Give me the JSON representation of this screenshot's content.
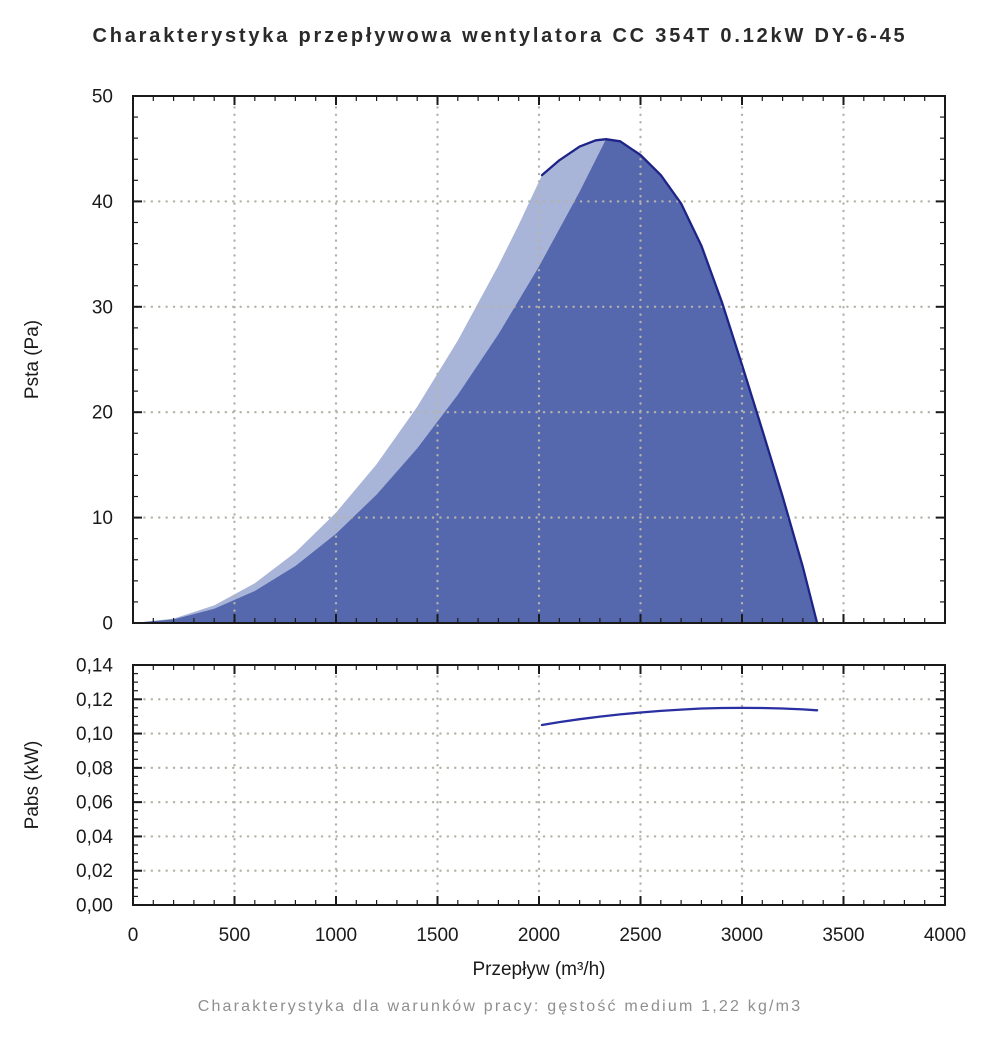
{
  "title": "Charakterystyka przepływowa wentylatora CC 354T 0.12kW DY-6-45",
  "caption": "Charakterystyka dla warunków pracy: gęstość medium 1,22 kg/m3",
  "colors": {
    "light": "#a9b5d8",
    "dark": "#5568ae",
    "fan_line": "#1e2487",
    "power_line": "#2a2fa2",
    "grid": "#b5b2a8",
    "axis": "#1a1a1a",
    "title_text": "#2a2a2a",
    "caption_text": "#8f8f8f"
  },
  "x_axis": {
    "label": "Przepływ (m³/h)",
    "min": 0,
    "max": 4000,
    "major": 500,
    "minor": 100,
    "tick_labels": [
      "0",
      "500",
      "1000",
      "1500",
      "2000",
      "2500",
      "3000",
      "3500",
      "4000"
    ]
  },
  "chart_data": [
    {
      "type": "area",
      "name": "pressure-chart",
      "ylabel": "Psta (Pa)",
      "ylim": [
        0,
        50
      ],
      "y_major": 10,
      "y_minor": 2,
      "y_tick_labels": [
        "0",
        "10",
        "20",
        "30",
        "40",
        "50"
      ],
      "grid": true,
      "series": [
        {
          "name": "operating-band-light",
          "kind": "area",
          "fill": "light",
          "x": [
            0,
            200,
            400,
            600,
            800,
            1000,
            1200,
            1400,
            1600,
            1800,
            1900,
            2015,
            2100,
            2200,
            2280,
            2330
          ],
          "y": [
            0,
            0.42,
            1.67,
            3.77,
            6.7,
            10.47,
            15.07,
            20.52,
            26.8,
            33.92,
            37.79,
            42.5,
            43.9,
            45.2,
            45.8,
            45.9
          ]
        },
        {
          "name": "operating-area-dark",
          "kind": "area",
          "fill": "dark",
          "x": [
            0,
            200,
            400,
            600,
            800,
            1000,
            1200,
            1400,
            1600,
            1800,
            2000,
            2200,
            2330,
            2400,
            2500,
            2600,
            2700,
            2800,
            2900,
            3000,
            3100,
            3200,
            3300,
            3370
          ],
          "y": [
            0,
            0.34,
            1.35,
            3.04,
            5.41,
            8.46,
            12.18,
            16.57,
            21.65,
            27.39,
            33.82,
            40.92,
            45.9,
            45.7,
            44.4,
            42.5,
            39.8,
            35.8,
            30.5,
            24.5,
            18.3,
            12.0,
            5.3,
            0
          ]
        },
        {
          "name": "fan-pressure-curve",
          "kind": "line",
          "color_key": "fan_line",
          "x": [
            2015,
            2100,
            2200,
            2280,
            2330,
            2400,
            2500,
            2600,
            2700,
            2800,
            2900,
            3000,
            3100,
            3200,
            3300,
            3370
          ],
          "y": [
            42.5,
            43.9,
            45.2,
            45.8,
            45.9,
            45.7,
            44.4,
            42.5,
            39.8,
            35.8,
            30.5,
            24.5,
            18.3,
            12.0,
            5.3,
            0
          ]
        }
      ]
    },
    {
      "type": "line",
      "name": "power-chart",
      "ylabel": "Pabs (kW)",
      "ylim": [
        0,
        0.14
      ],
      "y_major": 0.02,
      "y_minor": 0.005,
      "y_tick_labels": [
        "0,00",
        "0,02",
        "0,04",
        "0,06",
        "0,08",
        "0,10",
        "0,12",
        "0,14"
      ],
      "grid": true,
      "series": [
        {
          "name": "absorbed-power-curve",
          "kind": "line",
          "color_key": "power_line",
          "x": [
            2015,
            2100,
            2200,
            2300,
            2400,
            2500,
            2600,
            2700,
            2800,
            2900,
            3000,
            3100,
            3200,
            3300,
            3370
          ],
          "y": [
            0.105,
            0.1067,
            0.1084,
            0.1099,
            0.1112,
            0.1123,
            0.1132,
            0.114,
            0.1146,
            0.1149,
            0.115,
            0.1149,
            0.1146,
            0.1141,
            0.1136
          ]
        }
      ]
    }
  ]
}
